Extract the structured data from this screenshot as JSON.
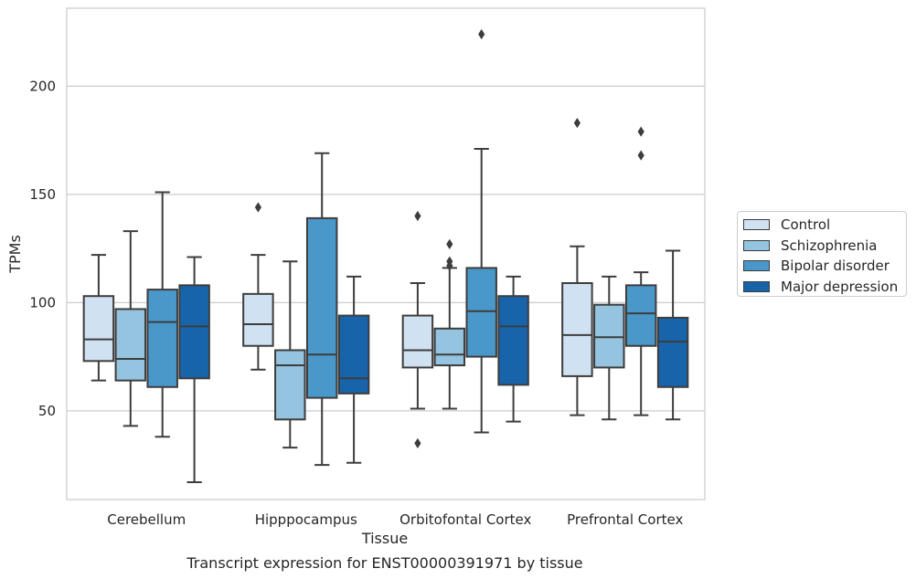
{
  "chart_data": {
    "type": "boxplot",
    "title": "Transcript expression for ENST00000391971 by tissue",
    "xlabel": "Tissue",
    "ylabel": "TPMs",
    "ylim": [
      9,
      236
    ],
    "yticks": [
      50,
      100,
      150,
      200
    ],
    "grid": true,
    "legend_position": "right",
    "categories": [
      "Cerebellum",
      "Hipppocampus",
      "Orbitofontal Cortex",
      "Prefrontal Cortex"
    ],
    "series": [
      {
        "name": "Control",
        "color": "#d0e1f2",
        "boxes": [
          {
            "whislo": 64,
            "q1": 73,
            "med": 83,
            "q3": 103,
            "whishi": 122,
            "fliers": []
          },
          {
            "whislo": 69,
            "q1": 80,
            "med": 90,
            "q3": 104,
            "whishi": 122,
            "fliers": [
              144
            ]
          },
          {
            "whislo": 51,
            "q1": 70,
            "med": 78,
            "q3": 94,
            "whishi": 109,
            "fliers": [
              140,
              35
            ]
          },
          {
            "whislo": 48,
            "q1": 66,
            "med": 85,
            "q3": 109,
            "whishi": 126,
            "fliers": [
              183
            ]
          }
        ]
      },
      {
        "name": "Schizophrenia",
        "color": "#94c4df",
        "boxes": [
          {
            "whislo": 43,
            "q1": 64,
            "med": 74,
            "q3": 97,
            "whishi": 133,
            "fliers": []
          },
          {
            "whislo": 33,
            "q1": 46,
            "med": 71,
            "q3": 78,
            "whishi": 119,
            "fliers": []
          },
          {
            "whislo": 51,
            "q1": 71,
            "med": 76,
            "q3": 88,
            "whishi": 116,
            "fliers": [
              127,
              119,
              117
            ]
          },
          {
            "whislo": 46,
            "q1": 70,
            "med": 84,
            "q3": 99,
            "whishi": 112,
            "fliers": []
          }
        ]
      },
      {
        "name": "Bipolar disorder",
        "color": "#4a98c9",
        "boxes": [
          {
            "whislo": 38,
            "q1": 61,
            "med": 91,
            "q3": 106,
            "whishi": 151,
            "fliers": []
          },
          {
            "whislo": 25,
            "q1": 56,
            "med": 76,
            "q3": 139,
            "whishi": 169,
            "fliers": []
          },
          {
            "whislo": 40,
            "q1": 75,
            "med": 96,
            "q3": 116,
            "whishi": 171,
            "fliers": [
              224
            ]
          },
          {
            "whislo": 48,
            "q1": 80,
            "med": 95,
            "q3": 108,
            "whishi": 114,
            "fliers": [
              179,
              168
            ]
          }
        ]
      },
      {
        "name": "Major depression",
        "color": "#1764ab",
        "boxes": [
          {
            "whislo": 17,
            "q1": 65,
            "med": 89,
            "q3": 108,
            "whishi": 121,
            "fliers": []
          },
          {
            "whislo": 26,
            "q1": 58,
            "med": 65,
            "q3": 94,
            "whishi": 112,
            "fliers": []
          },
          {
            "whislo": 45,
            "q1": 62,
            "med": 89,
            "q3": 103,
            "whishi": 112,
            "fliers": []
          },
          {
            "whislo": 46,
            "q1": 61,
            "med": 82,
            "q3": 93,
            "whishi": 124,
            "fliers": []
          }
        ]
      }
    ]
  }
}
